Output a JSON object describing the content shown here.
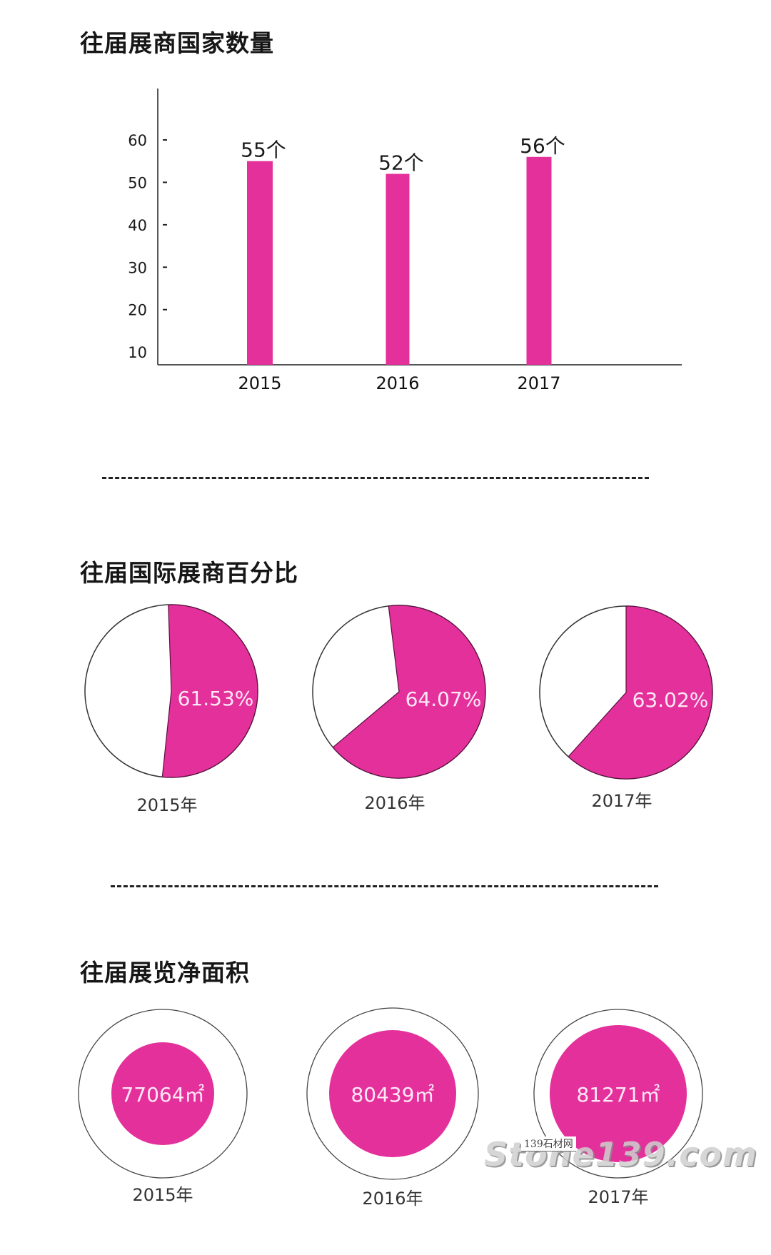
{
  "colors": {
    "accent": "#e4309b",
    "axis": "#555555",
    "text": "#1a1a1a",
    "outline": "#333333"
  },
  "sections": {
    "countries": {
      "title": "往届展商国家数量"
    },
    "intl_pct": {
      "title": "往届国际展商百分比"
    },
    "area": {
      "title": "往届展览净面积"
    }
  },
  "watermark": {
    "text": "Stone139.com",
    "tag": "139石材网"
  },
  "chart_data": [
    {
      "type": "bar",
      "title": "往届展商国家数量",
      "categories": [
        "2015",
        "2016",
        "2017"
      ],
      "values": [
        55,
        52,
        56
      ],
      "data_labels": [
        "55个",
        "52个",
        "56个"
      ],
      "yticks": [
        10,
        20,
        30,
        40,
        50,
        60
      ],
      "ylim": [
        7,
        72
      ],
      "xlabel": "",
      "ylabel": "",
      "grid": false
    },
    {
      "type": "pie",
      "title": "往届国际展商百分比",
      "categories": [
        "2015年",
        "2016年",
        "2017年"
      ],
      "values": [
        61.53,
        64.07,
        63.02
      ],
      "data_labels": [
        "61.53%",
        "64.07%",
        "63.02%"
      ]
    },
    {
      "type": "bar",
      "title": "往届展览净面积",
      "categories": [
        "2015年",
        "2016年",
        "2017年"
      ],
      "values": [
        77064,
        80439,
        81271
      ],
      "data_labels": [
        "77064㎡",
        "80439㎡",
        "81271㎡"
      ],
      "unit": "㎡"
    }
  ]
}
